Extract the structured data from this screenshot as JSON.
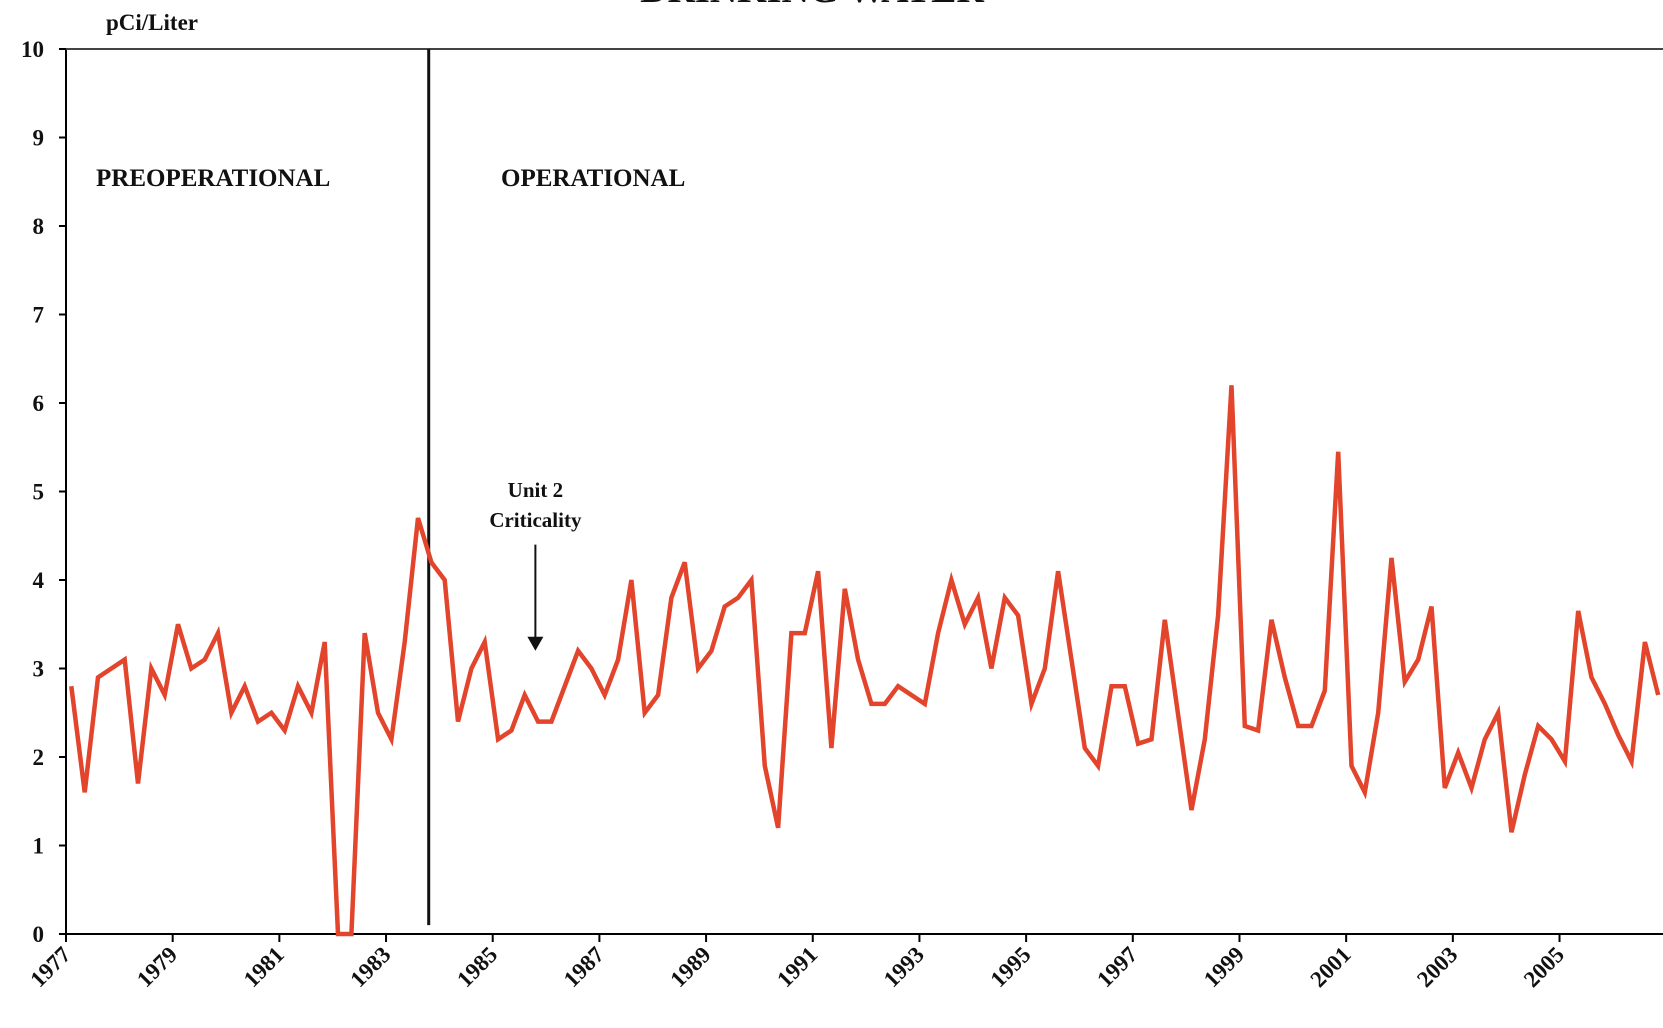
{
  "chart_data": {
    "type": "line",
    "title": "DRINKING WATER",
    "ylabel": "pCi/Liter",
    "annotations": {
      "preoperational": "PREOPERATIONAL",
      "operational": "OPERATIONAL",
      "criticality": [
        "Unit 2",
        "Criticality"
      ]
    },
    "divider_x": 1983.8,
    "arrow_x": 1985.8,
    "arrow_y": [
      4.4,
      3.2
    ],
    "xlim": [
      1977,
      2006.94
    ],
    "xticks": [
      1977,
      1979,
      1981,
      1983,
      1985,
      1987,
      1989,
      1991,
      1993,
      1995,
      1997,
      1999,
      2001,
      2003,
      2005
    ],
    "ylim": [
      0,
      10
    ],
    "yticks": [
      0,
      1,
      2,
      3,
      4,
      5,
      6,
      7,
      8,
      9,
      10
    ],
    "series": [
      {
        "color": "#e2442c",
        "x": [
          1977.1,
          1977.35,
          1977.6,
          1978.1,
          1978.35,
          1978.6,
          1978.85,
          1979.1,
          1979.35,
          1979.6,
          1979.85,
          1980.1,
          1980.35,
          1980.6,
          1980.85,
          1981.1,
          1981.35,
          1981.6,
          1981.85,
          1982.1,
          1982.35,
          1982.6,
          1982.85,
          1983.1,
          1983.35,
          1983.6,
          1983.85,
          1984.1,
          1984.35,
          1984.6,
          1984.85,
          1985.1,
          1985.35,
          1985.6,
          1985.85,
          1986.1,
          1986.6,
          1986.85,
          1987.1,
          1987.35,
          1987.6,
          1987.85,
          1988.1,
          1988.35,
          1988.6,
          1988.85,
          1989.1,
          1989.35,
          1989.6,
          1989.85,
          1990.1,
          1990.35,
          1990.6,
          1990.85,
          1991.1,
          1991.35,
          1991.6,
          1991.85,
          1992.1,
          1992.35,
          1992.6,
          1993.1,
          1993.35,
          1993.6,
          1993.85,
          1994.1,
          1994.35,
          1994.6,
          1994.85,
          1995.1,
          1995.35,
          1995.6,
          1996.1,
          1996.35,
          1996.6,
          1996.85,
          1997.1,
          1997.35,
          1997.6,
          1998.1,
          1998.35,
          1998.6,
          1998.85,
          1999.1,
          1999.35,
          1999.6,
          1999.85,
          2000.1,
          2000.35,
          2000.6,
          2000.85,
          2001.1,
          2001.35,
          2001.6,
          2001.85,
          2002.1,
          2002.35,
          2002.6,
          2002.85,
          2003.1,
          2003.35,
          2003.6,
          2003.85,
          2004.1,
          2004.35,
          2004.6,
          2004.85,
          2005.1,
          2005.35,
          2005.6,
          2005.85,
          2006.1,
          2006.35,
          2006.6,
          2006.85
        ],
        "values": [
          2.8,
          1.6,
          2.9,
          3.1,
          1.7,
          3.0,
          2.7,
          3.5,
          3.0,
          3.1,
          3.4,
          2.5,
          2.8,
          2.4,
          2.5,
          2.3,
          2.8,
          2.5,
          3.3,
          0,
          0,
          3.4,
          2.5,
          2.2,
          3.3,
          4.7,
          4.2,
          4.0,
          2.4,
          3.0,
          3.3,
          2.2,
          2.3,
          2.7,
          2.4,
          2.4,
          3.2,
          3.0,
          2.7,
          3.1,
          4.0,
          2.5,
          2.7,
          3.8,
          4.2,
          3.0,
          3.2,
          3.7,
          3.8,
          4.0,
          1.9,
          1.2,
          3.4,
          3.4,
          4.1,
          2.1,
          3.9,
          3.1,
          2.6,
          2.6,
          2.8,
          2.6,
          3.4,
          4.0,
          3.5,
          3.8,
          3.0,
          3.8,
          3.6,
          2.6,
          3.0,
          4.1,
          2.1,
          1.9,
          2.8,
          2.8,
          2.15,
          2.2,
          3.55,
          1.4,
          2.2,
          3.6,
          6.2,
          2.35,
          2.3,
          3.55,
          2.9,
          2.35,
          2.35,
          2.75,
          5.45,
          1.9,
          1.6,
          2.5,
          4.25,
          2.85,
          3.1,
          3.7,
          1.65,
          2.05,
          1.65,
          2.2,
          2.5,
          1.15,
          1.8,
          2.35,
          2.2,
          1.95,
          3.65,
          2.9,
          2.6,
          2.25,
          1.95,
          3.3,
          2.7
        ]
      }
    ]
  }
}
